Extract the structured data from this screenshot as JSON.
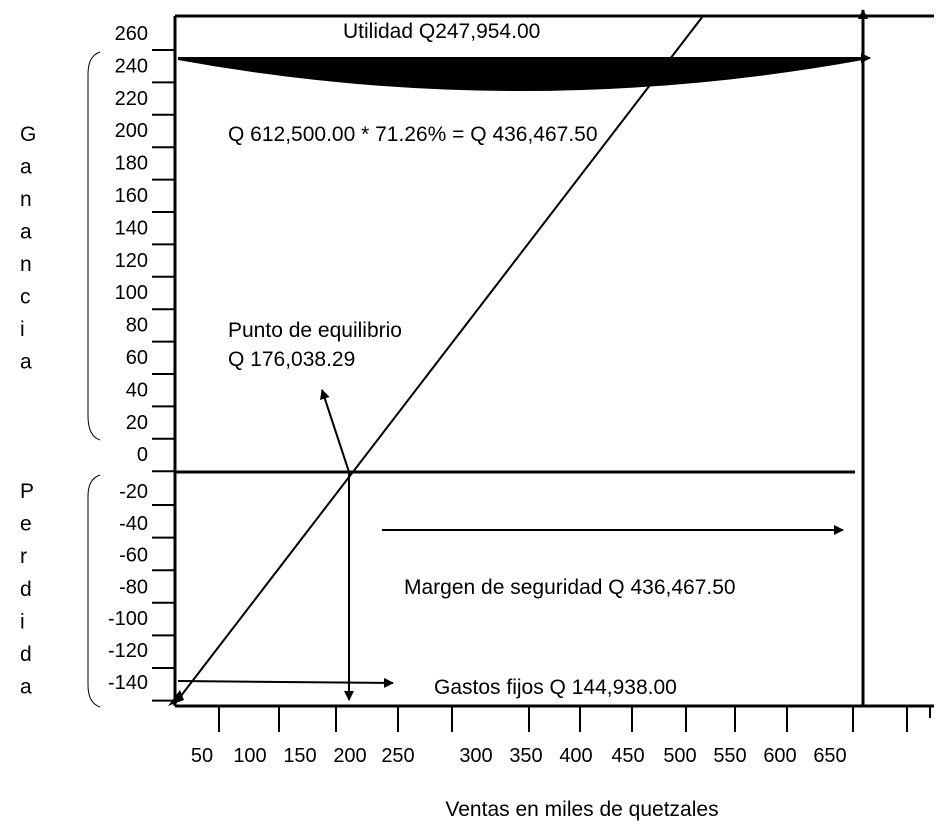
{
  "chart_data": {
    "type": "line",
    "xlabel": "Ventas en miles de quetzales",
    "ylabel_ganancia": [
      "G",
      "a",
      "n",
      "a",
      "n",
      "c",
      "i",
      "a"
    ],
    "ylabel_perdida": [
      "P",
      "e",
      "r",
      "d",
      "i",
      "d",
      "a"
    ],
    "x_ticks": [
      "50",
      "100",
      "150",
      "200",
      "250",
      "300",
      "350",
      "400",
      "450",
      "500",
      "550",
      "600",
      "650"
    ],
    "y_ticks_pos": [
      "260",
      "240",
      "220",
      "200",
      "180",
      "160",
      "140",
      "120",
      "100",
      "80",
      "60",
      "40",
      "20",
      "0"
    ],
    "y_ticks_neg": [
      "-20",
      "-40",
      "-60",
      "-80",
      "-100",
      "-120",
      "-140"
    ],
    "annotations": {
      "utilidad": "Utilidad Q247,954.00",
      "formula": "Q 612,500.00 * 71.26% = Q 436,467.50",
      "punto_line1": "Punto de equilibrio",
      "punto_line2": "Q 176,038.29",
      "margen": "Margen de seguridad Q 436,467.50",
      "gastos": "Gastos fijos Q 144,938.00"
    }
  }
}
